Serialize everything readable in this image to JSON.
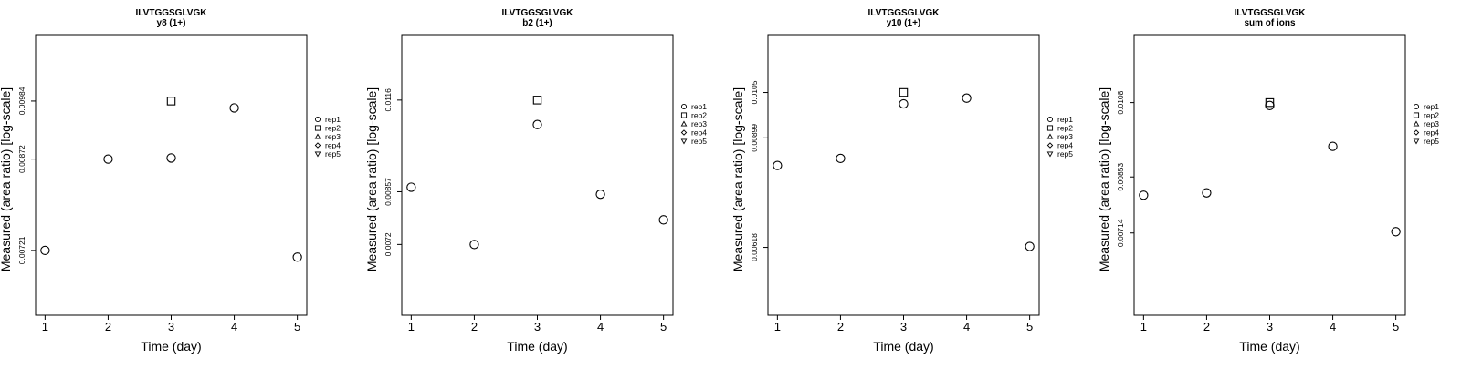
{
  "chart_data": [
    {
      "type": "scatter",
      "title": "ILVTGGSGLVGK",
      "subtitle": "y8 (1+)",
      "xlabel": "Time (day)",
      "ylabel": "Measured (area ratio) [log-scale]",
      "xlim": [
        0.85,
        5.15
      ],
      "x_ticks": [
        1,
        2,
        3,
        4,
        5
      ],
      "y_scale": "log",
      "ylim": [
        0.0063,
        0.0113
      ],
      "y_ticks": [
        0.00721,
        0.00872,
        0.00984
      ],
      "y_tick_labels": [
        "0.00721",
        "0.00872",
        "0.00984"
      ],
      "legend": [
        "rep1",
        "rep2",
        "rep3",
        "rep4",
        "rep5"
      ],
      "legend_position": "right",
      "series": [
        {
          "name": "rep1",
          "marker": "circle",
          "x": [
            1,
            2,
            3,
            4,
            5
          ],
          "y": [
            0.00721,
            0.00872,
            0.00874,
            0.0097,
            0.00711
          ]
        },
        {
          "name": "rep2",
          "marker": "square",
          "x": [
            3
          ],
          "y": [
            0.00984
          ]
        }
      ]
    },
    {
      "type": "scatter",
      "title": "ILVTGGSGLVGK",
      "subtitle": "b2 (1+)",
      "xlabel": "Time (day)",
      "ylabel": "Measured (area ratio) [log-scale]",
      "xlim": [
        0.85,
        5.15
      ],
      "x_ticks": [
        1,
        2,
        3,
        4,
        5
      ],
      "y_scale": "log",
      "ylim": [
        0.0057,
        0.0144
      ],
      "y_ticks": [
        0.0072,
        0.00857,
        0.0116
      ],
      "y_tick_labels": [
        "0.0072",
        "0.00857",
        "0.0116"
      ],
      "legend": [
        "rep1",
        "rep2",
        "rep3",
        "rep4",
        "rep5"
      ],
      "legend_position": "right",
      "series": [
        {
          "name": "rep1",
          "marker": "circle",
          "x": [
            1,
            2,
            3,
            4,
            5
          ],
          "y": [
            0.0087,
            0.0072,
            0.0107,
            0.0085,
            0.00781
          ]
        },
        {
          "name": "rep2",
          "marker": "square",
          "x": [
            3
          ],
          "y": [
            0.0116
          ]
        }
      ]
    },
    {
      "type": "scatter",
      "title": "ILVTGGSGLVGK",
      "subtitle": "y10 (1+)",
      "xlabel": "Time (day)",
      "ylabel": "Measured (area ratio) [log-scale]",
      "xlim": [
        0.85,
        5.15
      ],
      "x_ticks": [
        1,
        2,
        3,
        4,
        5
      ],
      "y_scale": "log",
      "ylim": [
        0.0049,
        0.0128
      ],
      "y_ticks": [
        0.00618,
        0.00899,
        0.0105
      ],
      "y_tick_labels": [
        "0.00618",
        "0.00899",
        "0.0105"
      ],
      "legend": [
        "rep1",
        "rep2",
        "rep3",
        "rep4",
        "rep5"
      ],
      "legend_position": "right",
      "series": [
        {
          "name": "rep1",
          "marker": "circle",
          "x": [
            1,
            2,
            3,
            4,
            5
          ],
          "y": [
            0.00818,
            0.00838,
            0.0101,
            0.0103,
            0.0062
          ]
        },
        {
          "name": "rep2",
          "marker": "square",
          "x": [
            3
          ],
          "y": [
            0.0105
          ]
        }
      ]
    },
    {
      "type": "scatter",
      "title": "ILVTGGSGLVGK",
      "subtitle": "sum of ions",
      "xlabel": "Time (day)",
      "ylabel": "Measured (area ratio) [log-scale]",
      "xlim": [
        0.85,
        5.15
      ],
      "x_ticks": [
        1,
        2,
        3,
        4,
        5
      ],
      "y_scale": "log",
      "ylim": [
        0.0055,
        0.0134
      ],
      "y_ticks": [
        0.00714,
        0.00853,
        0.0108
      ],
      "y_tick_labels": [
        "0.00714",
        "0.00853",
        "0.0108"
      ],
      "legend": [
        "rep1",
        "rep2",
        "rep3",
        "rep4",
        "rep5"
      ],
      "legend_position": "right",
      "series": [
        {
          "name": "rep1",
          "marker": "circle",
          "x": [
            1,
            2,
            3,
            4,
            5
          ],
          "y": [
            0.00805,
            0.00811,
            0.0107,
            0.0094,
            0.00717
          ]
        },
        {
          "name": "rep2",
          "marker": "square",
          "x": [
            3
          ],
          "y": [
            0.0108
          ]
        }
      ]
    }
  ]
}
